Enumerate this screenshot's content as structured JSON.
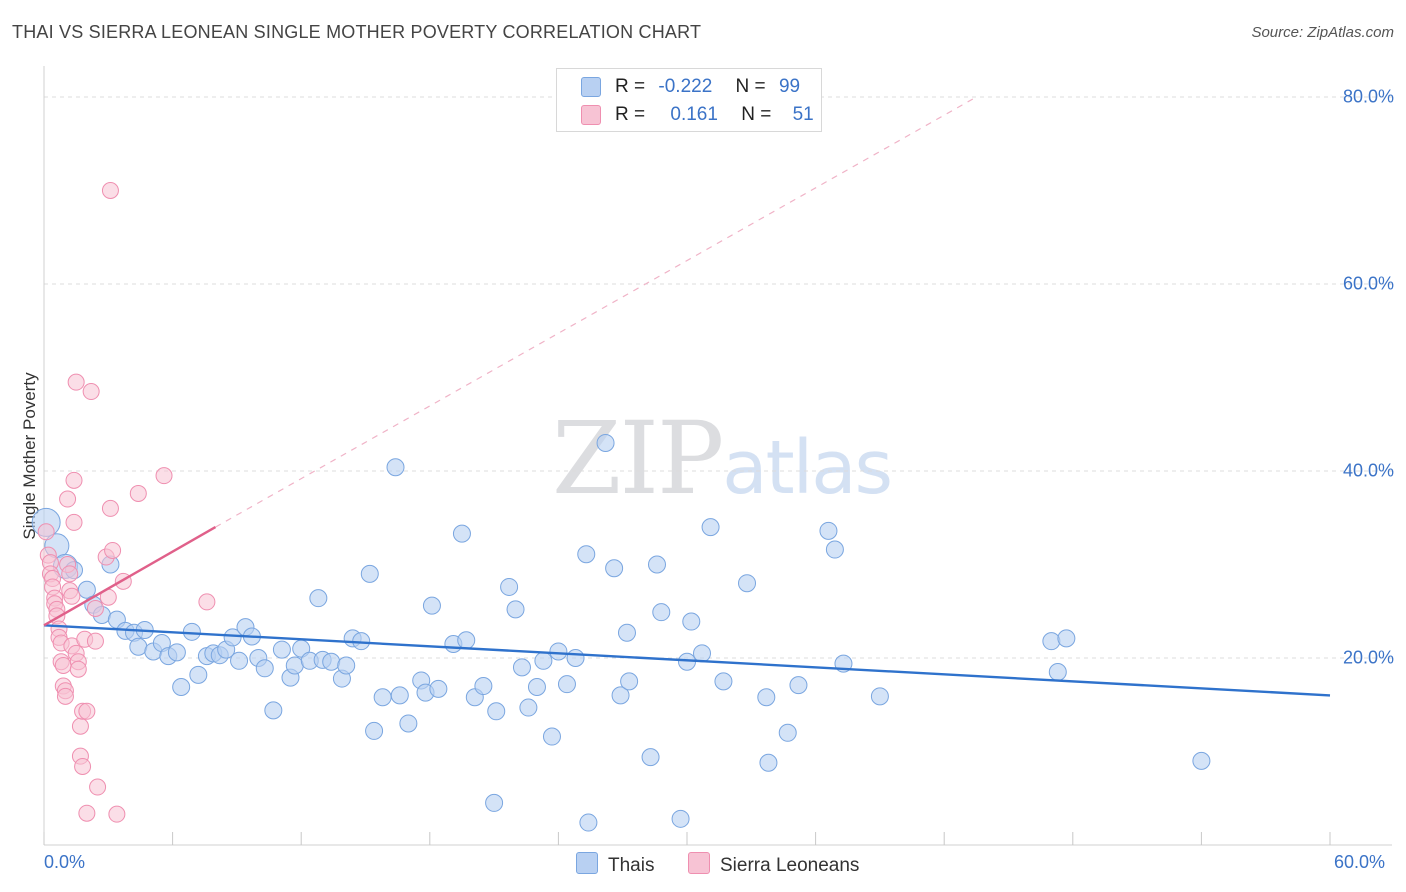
{
  "header": {
    "title": "THAI VS SIERRA LEONEAN SINGLE MOTHER POVERTY CORRELATION CHART",
    "source": "Source: ZipAtlas.com"
  },
  "watermark": {
    "zip": "ZIP",
    "atlas": "atlas"
  },
  "legend": {
    "rows": [
      {
        "r_label": "R =",
        "r_value": "-0.222",
        "n_label": "N =",
        "n_value": "99"
      },
      {
        "r_label": "R =",
        "r_value": "0.161",
        "n_label": "N =",
        "n_value": "51"
      }
    ]
  },
  "colors": {
    "thais_fill": "#b8d0f2",
    "thais_stroke": "#7aa6e0",
    "thais_line": "#2f72cc",
    "sierra_fill": "#f7c3d4",
    "sierra_stroke": "#ef8fb0",
    "sierra_line": "#e0608a"
  },
  "chart_data": {
    "type": "scatter",
    "title": "THAI VS SIERRA LEONEAN SINGLE MOTHER POVERTY CORRELATION CHART",
    "xlabel": "",
    "ylabel": "Single Mother Poverty",
    "xlim": [
      0,
      60
    ],
    "ylim": [
      0,
      80
    ],
    "x_ticks": [
      "0.0%",
      "60.0%"
    ],
    "y_ticks": [
      {
        "value": 20,
        "label": "20.0%"
      },
      {
        "value": 40,
        "label": "40.0%"
      },
      {
        "value": 60,
        "label": "60.0%"
      },
      {
        "value": 80,
        "label": "80.0%"
      }
    ],
    "grid": true,
    "legend_position": "top-center",
    "series": [
      {
        "name": "Thais",
        "r": -0.222,
        "n": 99,
        "trend": {
          "x0": 0,
          "y0": 23.5,
          "x1": 60,
          "y1": 16.0
        },
        "points": [
          [
            0.1,
            34.5
          ],
          [
            0.6,
            32.0
          ],
          [
            1.0,
            29.8
          ],
          [
            1.4,
            29.4
          ],
          [
            2.0,
            27.3
          ],
          [
            2.3,
            25.7
          ],
          [
            2.7,
            24.6
          ],
          [
            3.1,
            30.0
          ],
          [
            3.4,
            24.1
          ],
          [
            3.8,
            22.9
          ],
          [
            4.2,
            22.7
          ],
          [
            4.4,
            21.2
          ],
          [
            4.7,
            23.0
          ],
          [
            5.1,
            20.7
          ],
          [
            5.5,
            21.6
          ],
          [
            5.8,
            20.2
          ],
          [
            6.2,
            20.6
          ],
          [
            6.4,
            16.9
          ],
          [
            6.9,
            22.8
          ],
          [
            7.2,
            18.2
          ],
          [
            7.6,
            20.2
          ],
          [
            7.9,
            20.5
          ],
          [
            8.2,
            20.3
          ],
          [
            8.5,
            20.9
          ],
          [
            8.8,
            22.2
          ],
          [
            9.1,
            19.7
          ],
          [
            9.4,
            23.3
          ],
          [
            9.7,
            22.3
          ],
          [
            10.0,
            20.0
          ],
          [
            10.3,
            18.9
          ],
          [
            10.7,
            14.4
          ],
          [
            11.1,
            20.9
          ],
          [
            11.5,
            17.9
          ],
          [
            11.7,
            19.2
          ],
          [
            12.0,
            21.0
          ],
          [
            12.4,
            19.7
          ],
          [
            12.8,
            26.4
          ],
          [
            13.0,
            19.8
          ],
          [
            13.4,
            19.6
          ],
          [
            13.9,
            17.8
          ],
          [
            14.1,
            19.2
          ],
          [
            14.4,
            22.1
          ],
          [
            14.8,
            21.8
          ],
          [
            15.2,
            29.0
          ],
          [
            15.4,
            12.2
          ],
          [
            15.8,
            15.8
          ],
          [
            16.4,
            40.4
          ],
          [
            16.6,
            16.0
          ],
          [
            17.0,
            13.0
          ],
          [
            17.6,
            17.6
          ],
          [
            17.8,
            16.3
          ],
          [
            18.1,
            25.6
          ],
          [
            18.4,
            16.7
          ],
          [
            19.1,
            21.5
          ],
          [
            19.5,
            33.3
          ],
          [
            19.7,
            21.9
          ],
          [
            20.1,
            15.8
          ],
          [
            20.5,
            17.0
          ],
          [
            21.0,
            4.5
          ],
          [
            21.1,
            14.3
          ],
          [
            21.7,
            27.6
          ],
          [
            22.0,
            25.2
          ],
          [
            22.3,
            19.0
          ],
          [
            22.6,
            14.7
          ],
          [
            23.0,
            16.9
          ],
          [
            23.3,
            19.7
          ],
          [
            23.7,
            11.6
          ],
          [
            24.0,
            20.7
          ],
          [
            24.4,
            17.2
          ],
          [
            24.8,
            20.0
          ],
          [
            25.3,
            31.1
          ],
          [
            25.4,
            2.4
          ],
          [
            26.2,
            43.0
          ],
          [
            26.6,
            29.6
          ],
          [
            26.9,
            16.0
          ],
          [
            27.2,
            22.7
          ],
          [
            27.3,
            17.5
          ],
          [
            28.3,
            9.4
          ],
          [
            28.6,
            30.0
          ],
          [
            28.8,
            24.9
          ],
          [
            29.7,
            2.8
          ],
          [
            30.0,
            19.6
          ],
          [
            30.2,
            23.9
          ],
          [
            30.7,
            20.5
          ],
          [
            31.1,
            34.0
          ],
          [
            31.7,
            17.5
          ],
          [
            32.8,
            28.0
          ],
          [
            33.7,
            15.8
          ],
          [
            33.8,
            8.8
          ],
          [
            34.7,
            12.0
          ],
          [
            35.2,
            17.1
          ],
          [
            36.6,
            33.6
          ],
          [
            36.9,
            31.6
          ],
          [
            37.3,
            19.4
          ],
          [
            39.0,
            15.9
          ],
          [
            47.0,
            21.8
          ],
          [
            47.3,
            18.5
          ],
          [
            47.7,
            22.1
          ],
          [
            54.0,
            9.0
          ]
        ]
      },
      {
        "name": "Sierra Leoneans",
        "r": 0.161,
        "n": 51,
        "trend": {
          "x0": 0,
          "y0": 23.5,
          "x1": 8.0,
          "y1": 34.0
        },
        "trend_extension": {
          "x0": 8.0,
          "y0": 34.0,
          "x1": 43.5,
          "y1": 80.0
        },
        "points": [
          [
            0.1,
            33.5
          ],
          [
            0.2,
            31.0
          ],
          [
            0.3,
            30.2
          ],
          [
            0.3,
            29.0
          ],
          [
            0.4,
            28.5
          ],
          [
            0.4,
            27.6
          ],
          [
            0.5,
            26.4
          ],
          [
            0.5,
            25.8
          ],
          [
            0.6,
            25.2
          ],
          [
            0.6,
            24.5
          ],
          [
            0.7,
            23.1
          ],
          [
            0.7,
            22.2
          ],
          [
            0.8,
            21.6
          ],
          [
            0.8,
            19.6
          ],
          [
            0.9,
            19.2
          ],
          [
            0.9,
            17.0
          ],
          [
            1.0,
            16.5
          ],
          [
            1.0,
            15.9
          ],
          [
            1.1,
            37.0
          ],
          [
            1.1,
            30.0
          ],
          [
            1.2,
            29.0
          ],
          [
            1.2,
            27.2
          ],
          [
            1.3,
            26.6
          ],
          [
            1.3,
            21.3
          ],
          [
            1.4,
            39.0
          ],
          [
            1.4,
            34.5
          ],
          [
            1.5,
            49.5
          ],
          [
            1.5,
            20.5
          ],
          [
            1.6,
            19.6
          ],
          [
            1.6,
            18.8
          ],
          [
            1.7,
            12.7
          ],
          [
            1.7,
            9.5
          ],
          [
            1.8,
            14.3
          ],
          [
            1.8,
            8.4
          ],
          [
            1.9,
            22.0
          ],
          [
            2.0,
            14.3
          ],
          [
            2.0,
            3.4
          ],
          [
            2.2,
            48.5
          ],
          [
            2.4,
            21.8
          ],
          [
            2.4,
            25.3
          ],
          [
            2.5,
            6.2
          ],
          [
            2.9,
            30.8
          ],
          [
            3.0,
            26.5
          ],
          [
            3.1,
            36.0
          ],
          [
            3.2,
            31.5
          ],
          [
            3.4,
            3.3
          ],
          [
            3.1,
            70.0
          ],
          [
            3.7,
            28.2
          ],
          [
            4.4,
            37.6
          ],
          [
            5.6,
            39.5
          ],
          [
            7.6,
            26.0
          ]
        ]
      }
    ]
  },
  "bottom_legend": {
    "thais": "Thais",
    "sierra": "Sierra Leoneans"
  }
}
